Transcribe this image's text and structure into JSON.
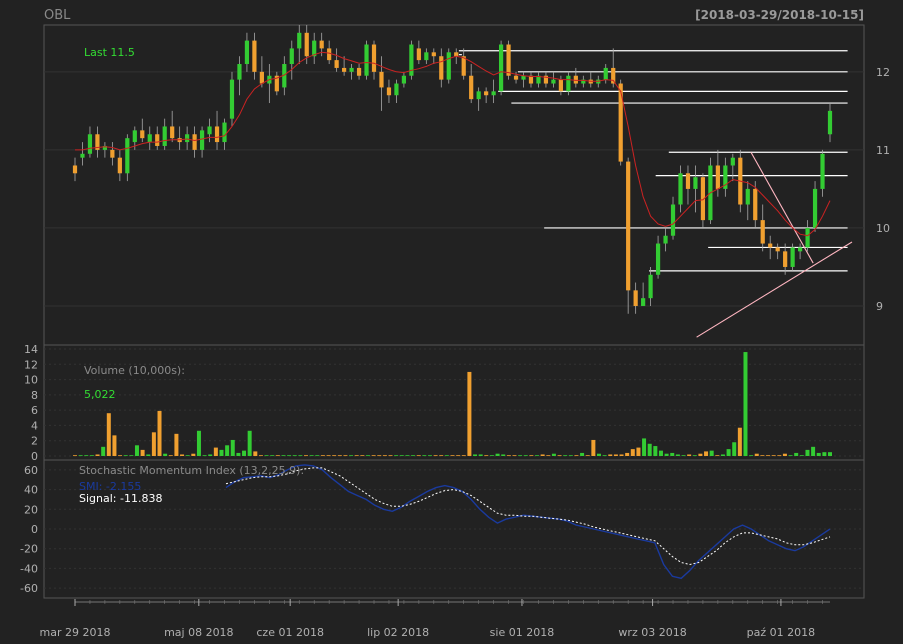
{
  "header": {
    "symbol": "OBL",
    "date_range": "[2018-03-29/2018-10-15]"
  },
  "colors": {
    "up": "#33cc33",
    "down": "#f0a030",
    "ma": "#cc2222",
    "smi": "#1a3a9e",
    "signal": "#ffffff",
    "trend": "#ffb6c1",
    "bg": "#222222",
    "frame": "#555555",
    "last": "#33dd33"
  },
  "chart_data": [
    {
      "type": "candlestick",
      "legend_label": "Last 11.5",
      "ylim": [
        8.5,
        12.6
      ],
      "yticks": [
        9,
        10,
        11,
        12
      ],
      "candles": [
        [
          10.8,
          10.9,
          10.6,
          10.7
        ],
        [
          10.9,
          11.1,
          10.8,
          10.95
        ],
        [
          10.95,
          11.3,
          10.9,
          11.2
        ],
        [
          11.2,
          11.3,
          10.9,
          11.0
        ],
        [
          11.0,
          11.1,
          10.9,
          11.05
        ],
        [
          11.0,
          11.1,
          10.8,
          10.9
        ],
        [
          10.9,
          11.0,
          10.6,
          10.7
        ],
        [
          10.7,
          11.2,
          10.6,
          11.15
        ],
        [
          11.1,
          11.3,
          11.0,
          11.25
        ],
        [
          11.25,
          11.4,
          11.1,
          11.15
        ],
        [
          11.1,
          11.3,
          11.0,
          11.2
        ],
        [
          11.2,
          11.3,
          11.0,
          11.05
        ],
        [
          11.05,
          11.4,
          11.0,
          11.3
        ],
        [
          11.3,
          11.5,
          11.1,
          11.15
        ],
        [
          11.15,
          11.3,
          11.0,
          11.1
        ],
        [
          11.1,
          11.3,
          11.0,
          11.2
        ],
        [
          11.2,
          11.3,
          10.9,
          11.0
        ],
        [
          11.0,
          11.3,
          10.9,
          11.25
        ],
        [
          11.2,
          11.4,
          11.1,
          11.3
        ],
        [
          11.3,
          11.5,
          11.0,
          11.1
        ],
        [
          11.1,
          11.4,
          11.0,
          11.35
        ],
        [
          11.4,
          12.0,
          11.3,
          11.9
        ],
        [
          11.9,
          12.2,
          11.7,
          12.1
        ],
        [
          12.1,
          12.5,
          12.0,
          12.4
        ],
        [
          12.4,
          12.5,
          11.9,
          12.0
        ],
        [
          12.0,
          12.2,
          11.8,
          11.85
        ],
        [
          11.85,
          12.1,
          11.6,
          11.95
        ],
        [
          11.95,
          12.0,
          11.7,
          11.75
        ],
        [
          11.8,
          12.2,
          11.7,
          12.1
        ],
        [
          12.1,
          12.4,
          11.9,
          12.3
        ],
        [
          12.3,
          12.6,
          12.1,
          12.5
        ],
        [
          12.5,
          12.6,
          12.1,
          12.2
        ],
        [
          12.2,
          12.5,
          12.1,
          12.4
        ],
        [
          12.4,
          12.5,
          12.2,
          12.3
        ],
        [
          12.3,
          12.4,
          12.1,
          12.15
        ],
        [
          12.15,
          12.3,
          12.0,
          12.05
        ],
        [
          12.05,
          12.2,
          11.95,
          12.0
        ],
        [
          12.0,
          12.1,
          11.9,
          12.05
        ],
        [
          12.05,
          12.1,
          11.9,
          11.95
        ],
        [
          11.95,
          12.4,
          11.9,
          12.35
        ],
        [
          12.35,
          12.4,
          11.9,
          12.0
        ],
        [
          12.0,
          12.2,
          11.5,
          11.8
        ],
        [
          11.8,
          11.9,
          11.6,
          11.7
        ],
        [
          11.7,
          11.9,
          11.6,
          11.85
        ],
        [
          11.85,
          12.0,
          11.8,
          11.95
        ],
        [
          11.95,
          12.4,
          11.9,
          12.35
        ],
        [
          12.3,
          12.4,
          12.1,
          12.15
        ],
        [
          12.15,
          12.3,
          12.1,
          12.25
        ],
        [
          12.25,
          12.3,
          12.1,
          12.2
        ],
        [
          12.2,
          12.3,
          11.8,
          11.9
        ],
        [
          11.9,
          12.3,
          11.85,
          12.25
        ],
        [
          12.25,
          12.3,
          12.1,
          12.2
        ],
        [
          12.2,
          12.3,
          11.9,
          11.95
        ],
        [
          11.95,
          12.1,
          11.6,
          11.65
        ],
        [
          11.65,
          11.8,
          11.5,
          11.75
        ],
        [
          11.75,
          11.8,
          11.6,
          11.7
        ],
        [
          11.7,
          11.9,
          11.6,
          11.75
        ],
        [
          11.75,
          12.4,
          11.7,
          12.35
        ],
        [
          12.35,
          12.4,
          11.9,
          11.95
        ],
        [
          11.95,
          12.0,
          11.85,
          11.9
        ],
        [
          11.9,
          12.0,
          11.8,
          11.95
        ],
        [
          11.95,
          12.0,
          11.8,
          11.85
        ],
        [
          11.85,
          12.0,
          11.8,
          11.95
        ],
        [
          11.95,
          12.0,
          11.8,
          11.85
        ],
        [
          11.85,
          12.0,
          11.8,
          11.9
        ],
        [
          11.9,
          11.95,
          11.7,
          11.75
        ],
        [
          11.75,
          12.0,
          11.7,
          11.95
        ],
        [
          11.95,
          12.05,
          11.8,
          11.85
        ],
        [
          11.85,
          11.95,
          11.8,
          11.9
        ],
        [
          11.9,
          12.0,
          11.8,
          11.85
        ],
        [
          11.85,
          11.95,
          11.8,
          11.9
        ],
        [
          11.9,
          12.1,
          11.85,
          12.05
        ],
        [
          12.05,
          12.3,
          11.8,
          11.85
        ],
        [
          11.85,
          11.9,
          10.8,
          10.85
        ],
        [
          10.85,
          10.9,
          8.9,
          9.2
        ],
        [
          9.2,
          9.3,
          8.9,
          9.0
        ],
        [
          9.0,
          9.3,
          9.0,
          9.1
        ],
        [
          9.1,
          9.5,
          9.0,
          9.4
        ],
        [
          9.4,
          9.9,
          9.35,
          9.8
        ],
        [
          9.8,
          10.0,
          9.7,
          9.9
        ],
        [
          9.9,
          10.4,
          9.85,
          10.3
        ],
        [
          10.3,
          10.8,
          10.2,
          10.7
        ],
        [
          10.7,
          10.8,
          10.3,
          10.5
        ],
        [
          10.5,
          10.8,
          10.2,
          10.65
        ],
        [
          10.65,
          10.7,
          10.0,
          10.1
        ],
        [
          10.1,
          10.9,
          10.05,
          10.8
        ],
        [
          10.8,
          11.0,
          10.4,
          10.5
        ],
        [
          10.5,
          10.9,
          10.4,
          10.8
        ],
        [
          10.8,
          10.95,
          10.6,
          10.9
        ],
        [
          10.9,
          11.0,
          10.2,
          10.3
        ],
        [
          10.3,
          10.6,
          10.1,
          10.5
        ],
        [
          10.5,
          10.6,
          10.0,
          10.1
        ],
        [
          10.1,
          10.3,
          9.7,
          9.8
        ],
        [
          9.8,
          9.9,
          9.6,
          9.75
        ],
        [
          9.75,
          9.8,
          9.6,
          9.7
        ],
        [
          9.7,
          9.8,
          9.4,
          9.5
        ],
        [
          9.5,
          9.8,
          9.45,
          9.75
        ],
        [
          9.7,
          9.8,
          9.6,
          9.75
        ],
        [
          9.75,
          10.1,
          9.7,
          10.0
        ],
        [
          10.0,
          10.6,
          9.95,
          10.5
        ],
        [
          10.5,
          11.0,
          10.4,
          10.95
        ],
        [
          11.2,
          11.6,
          11.1,
          11.5
        ]
      ],
      "ma": [
        11.0,
        11.0,
        11.02,
        11.03,
        11.04,
        11.03,
        11.0,
        11.02,
        11.05,
        11.08,
        11.1,
        11.1,
        11.12,
        11.13,
        11.13,
        11.14,
        11.12,
        11.14,
        11.16,
        11.16,
        11.18,
        11.3,
        11.45,
        11.65,
        11.78,
        11.85,
        11.9,
        11.92,
        11.96,
        12.03,
        12.12,
        12.18,
        12.22,
        12.25,
        12.24,
        12.21,
        12.17,
        12.14,
        12.11,
        12.12,
        12.11,
        12.07,
        12.03,
        12.0,
        11.99,
        12.02,
        12.04,
        12.07,
        12.11,
        12.13,
        12.17,
        12.2,
        12.18,
        12.13,
        12.07,
        12.01,
        11.96,
        12.0,
        11.99,
        11.97,
        11.95,
        11.94,
        11.94,
        11.93,
        11.92,
        11.9,
        11.9,
        11.89,
        11.89,
        11.88,
        11.88,
        11.9,
        11.89,
        11.75,
        11.3,
        10.8,
        10.4,
        10.15,
        10.05,
        10.02,
        10.05,
        10.15,
        10.25,
        10.35,
        10.36,
        10.45,
        10.5,
        10.55,
        10.62,
        10.6,
        10.58,
        10.52,
        10.42,
        10.32,
        10.22,
        10.1,
        10.0,
        9.92,
        9.9,
        9.98,
        10.15,
        10.35
      ],
      "hlines": [
        {
          "y": 12.27,
          "x0": 0.48,
          "x1": 1.0
        },
        {
          "y": 12.22,
          "x0": 0.48,
          "x1": 0.52
        },
        {
          "y": 12.0,
          "x0": 0.57,
          "x1": 1.0
        },
        {
          "y": 11.75,
          "x0": 0.54,
          "x1": 1.0
        },
        {
          "y": 11.6,
          "x0": 0.56,
          "x1": 1.0
        },
        {
          "y": 10.97,
          "x0": 0.8,
          "x1": 1.0
        },
        {
          "y": 10.67,
          "x0": 0.78,
          "x1": 1.0
        },
        {
          "y": 10.0,
          "x0": 0.61,
          "x1": 1.0
        },
        {
          "y": 9.75,
          "x0": 0.86,
          "x1": 1.0
        },
        {
          "y": 9.45,
          "x0": 0.77,
          "x1": 1.0
        }
      ],
      "trendlines": [
        {
          "x0": 0.8,
          "y0": 8.6,
          "x1": 1.0,
          "y1": 9.82
        },
        {
          "x0": 0.87,
          "y0": 10.97,
          "x1": 0.95,
          "y1": 9.55
        }
      ]
    },
    {
      "type": "bar",
      "label": "Volume (10,000s):",
      "last_value": "5,022",
      "ylim": [
        0,
        14
      ],
      "yticks": [
        0,
        2,
        4,
        6,
        8,
        10,
        12,
        14
      ],
      "values": [
        0.1,
        0.1,
        0.1,
        0.1,
        0.2,
        1.2,
        5.6,
        2.7,
        0.1,
        0.1,
        0.1,
        1.4,
        0.8,
        0.2,
        3.1,
        5.9,
        0.3,
        0.1,
        2.9,
        0.2,
        0.1,
        0.3,
        3.3,
        0.1,
        0.2,
        1.1,
        0.8,
        1.4,
        2.1,
        0.4,
        0.7,
        3.3,
        0.6,
        0.1,
        0.1,
        0.1,
        0.1,
        0.1,
        0.1,
        0.1,
        0.1,
        0.1,
        0.1,
        0.1,
        0.1,
        0.1,
        0.1,
        0.1,
        0.1,
        0.1,
        0.1,
        0.1,
        0.1,
        0.1,
        0.1,
        0.1,
        0.1,
        0.1,
        0.1,
        0.1,
        0.1,
        0.1,
        0.1,
        0.1,
        0.1,
        0.1,
        0.1,
        0.1,
        0.1,
        0.1,
        11.0,
        0.2,
        0.2,
        0.1,
        0.1,
        0.3,
        0.2,
        0.1,
        0.1,
        0.1,
        0.1,
        0.1,
        0.1,
        0.2,
        0.1,
        0.3,
        0.1,
        0.1,
        0.1,
        0.1,
        0.4,
        0.1,
        2.1,
        0.3,
        0.1,
        0.2,
        0.2,
        0.2,
        0.4,
        0.9,
        1.1,
        2.3,
        1.6,
        1.3,
        0.7,
        0.3,
        0.4,
        0.2,
        0.1,
        0.2,
        0.1,
        0.3,
        0.6,
        0.7,
        0.1,
        0.2,
        0.9,
        1.8,
        3.7,
        13.6,
        0.1,
        0.3,
        0.1,
        0.1,
        0.1,
        0.1,
        0.3,
        0.1,
        0.4,
        0.1,
        0.8,
        1.2,
        0.4,
        0.5,
        0.5
      ]
    },
    {
      "type": "line",
      "title": "Stochastic Momentum Index (13,2,25,9):",
      "smi_label": "SMI: -2.155",
      "signal_label": "Signal: -11.838",
      "ylim": [
        -70,
        70
      ],
      "yticks": [
        60,
        40,
        20,
        0,
        -20,
        -40,
        -60
      ],
      "x_start": 0.2,
      "smi": [
        42,
        48,
        52,
        53,
        54,
        52,
        55,
        60,
        64,
        65,
        64,
        60,
        52,
        45,
        38,
        34,
        30,
        24,
        20,
        18,
        22,
        28,
        33,
        38,
        42,
        44,
        42,
        38,
        30,
        20,
        12,
        6,
        10,
        12,
        14,
        13,
        12,
        11,
        10,
        8,
        4,
        2,
        0,
        -2,
        -4,
        -6,
        -8,
        -10,
        -12,
        -14,
        -36,
        -48,
        -50,
        -42,
        -32,
        -24,
        -16,
        -8,
        0,
        4,
        0,
        -6,
        -12,
        -16,
        -20,
        -22,
        -18,
        -12,
        -6,
        0
      ],
      "signal": [
        46,
        48,
        50,
        52,
        53,
        53,
        54,
        56,
        59,
        61,
        62,
        62,
        58,
        54,
        48,
        42,
        36,
        30,
        26,
        23,
        23,
        25,
        28,
        32,
        36,
        39,
        40,
        38,
        34,
        28,
        22,
        16,
        14,
        14,
        13,
        13,
        12,
        11,
        10,
        9,
        7,
        5,
        2,
        0,
        -2,
        -4,
        -6,
        -8,
        -10,
        -12,
        -20,
        -28,
        -34,
        -36,
        -34,
        -28,
        -22,
        -14,
        -8,
        -4,
        -4,
        -6,
        -8,
        -10,
        -14,
        -16,
        -16,
        -14,
        -11,
        -8
      ]
    }
  ],
  "xaxis": {
    "labels": [
      "mar 29 2018",
      "maj 08 2018",
      "cze 01 2018",
      "lip 02 2018",
      "sie 01 2018",
      "wrz 03 2018",
      "paź 01 2018"
    ],
    "positions": [
      0.0,
      0.164,
      0.285,
      0.428,
      0.592,
      0.765,
      0.935
    ]
  }
}
